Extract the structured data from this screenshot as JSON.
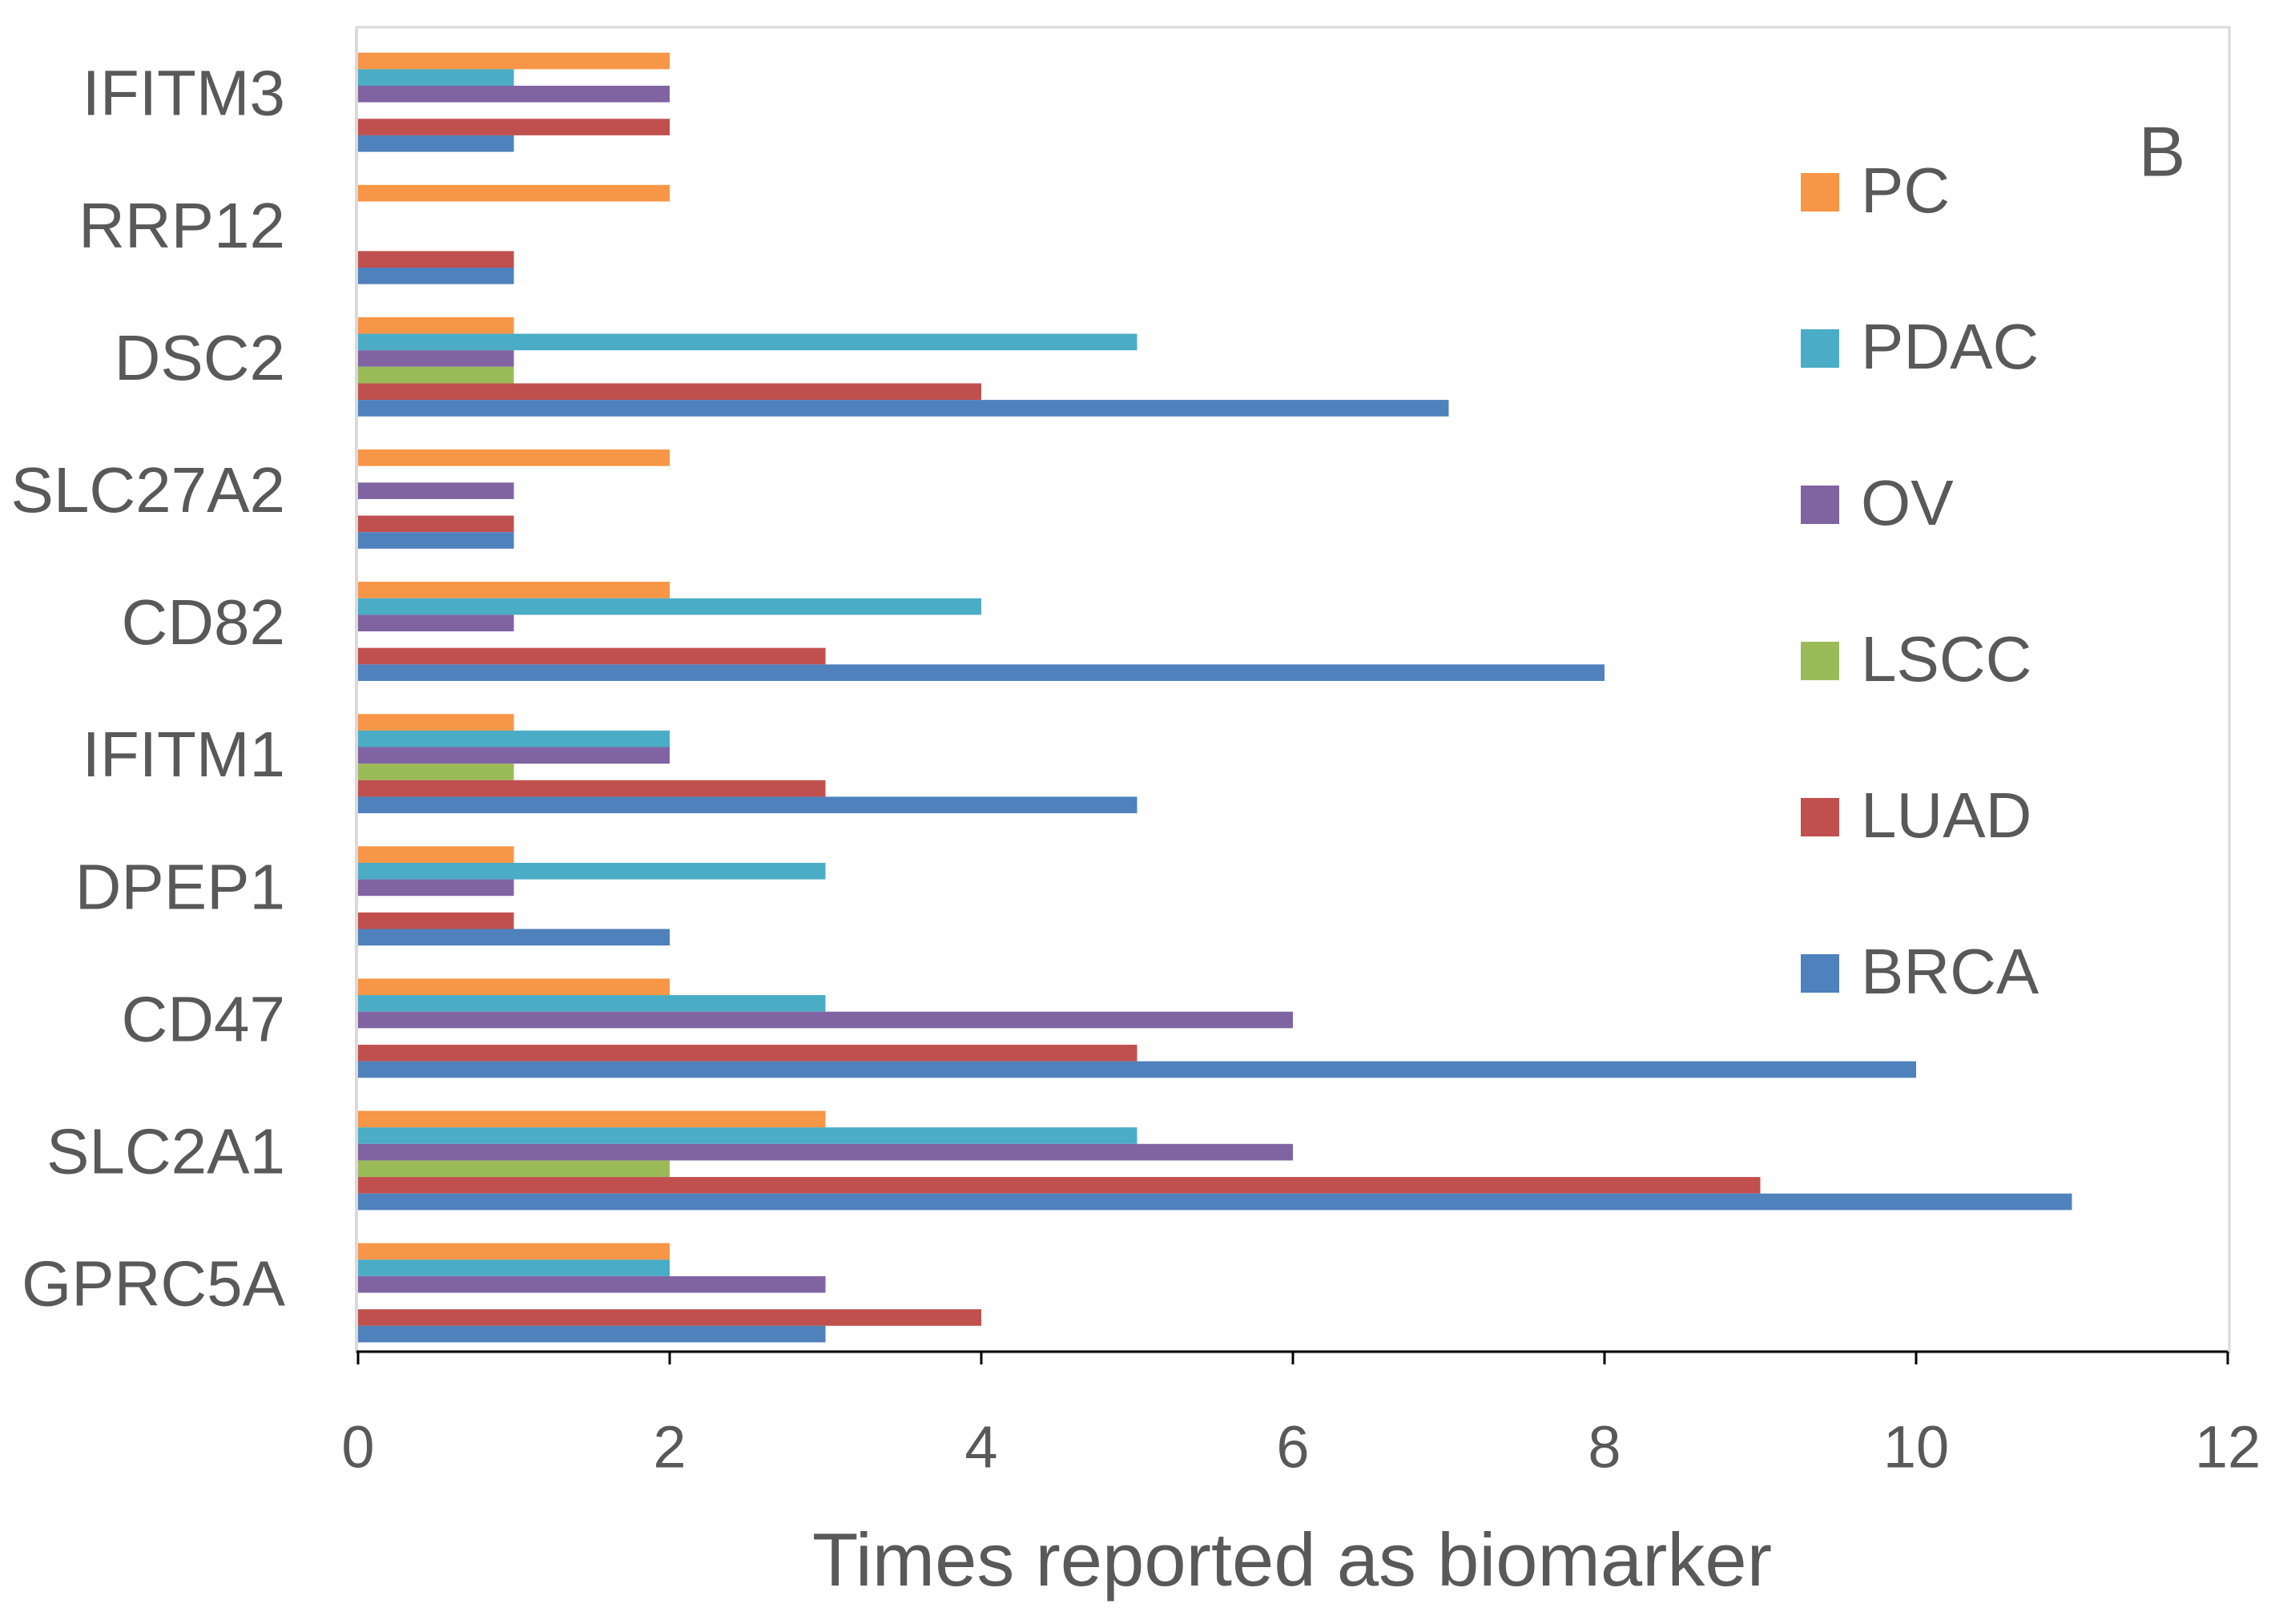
{
  "chart_data": {
    "type": "hbar",
    "xlabel": "Times reported as biomarker",
    "panel_label": "B",
    "categories": [
      "IFITM3",
      "RRP12",
      "DSC2",
      "SLC27A2",
      "CD82",
      "IFITM1",
      "DPEP1",
      "CD47",
      "SLC2A1",
      "GPRC5A"
    ],
    "series": [
      {
        "name": "PC",
        "color": "#f79646",
        "values": [
          2,
          2,
          1,
          2,
          2,
          1,
          1,
          2,
          3,
          2
        ]
      },
      {
        "name": "PDAC",
        "color": "#4bacc6",
        "values": [
          1,
          0,
          5,
          0,
          4,
          2,
          3,
          3,
          5,
          2
        ]
      },
      {
        "name": "OV",
        "color": "#8064a2",
        "values": [
          2,
          0,
          1,
          1,
          1,
          2,
          1,
          6,
          6,
          3
        ]
      },
      {
        "name": "LSCC",
        "color": "#9bbb59",
        "values": [
          0,
          0,
          1,
          0,
          0,
          1,
          0,
          0,
          2,
          0
        ]
      },
      {
        "name": "LUAD",
        "color": "#c0504d",
        "values": [
          2,
          1,
          4,
          1,
          3,
          3,
          1,
          5,
          9,
          4
        ]
      },
      {
        "name": "BRCA",
        "color": "#4f81bd",
        "values": [
          1,
          1,
          7,
          1,
          8,
          5,
          2,
          10,
          11,
          3
        ]
      }
    ],
    "xlim": [
      0,
      12
    ],
    "xticks": [
      0,
      2,
      4,
      6,
      8,
      10,
      12
    ],
    "grid": false,
    "legend": "right"
  }
}
